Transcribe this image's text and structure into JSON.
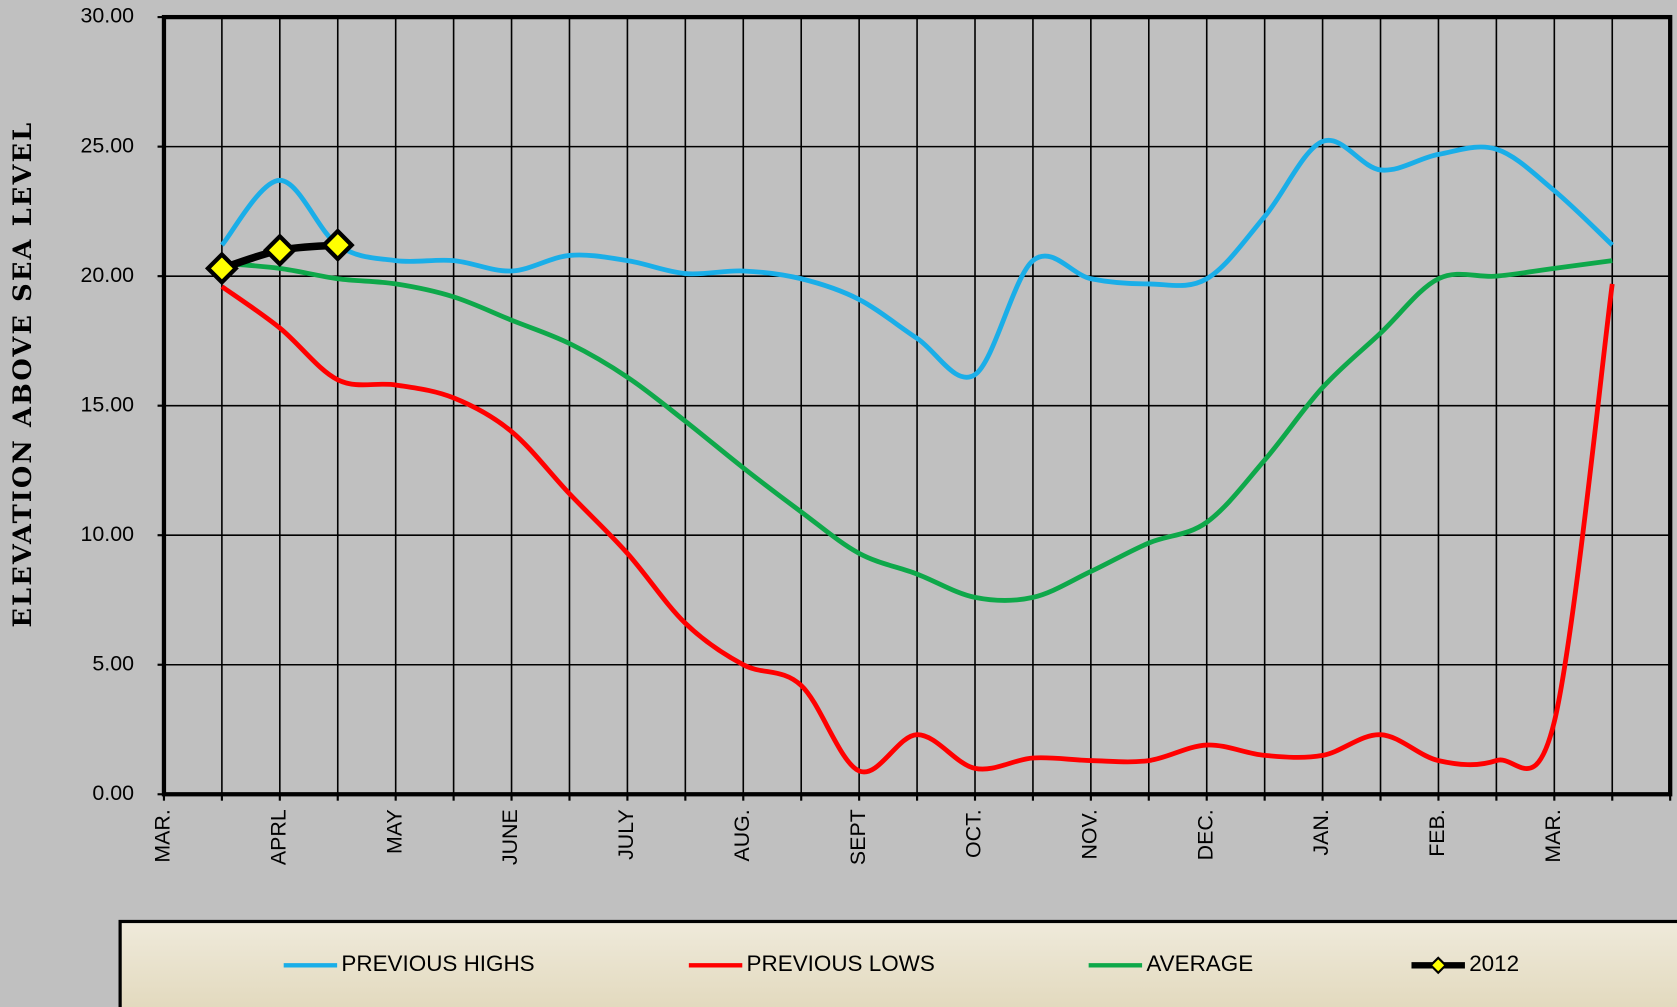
{
  "chart_data": {
    "type": "line",
    "ylabel": "ELEVATION ABOVE SEA LEVEL",
    "categories": [
      "MAR.",
      null,
      "APRL",
      null,
      "MAY",
      null,
      "JUNE",
      null,
      "JULY",
      null,
      "AUG.",
      null,
      "SEPT",
      null,
      "OCT.",
      null,
      "NOV.",
      null,
      "DEC.",
      null,
      "JAN.",
      null,
      "FEB.",
      null,
      "MAR.",
      null,
      null
    ],
    "ylim": [
      0,
      30
    ],
    "yticks": [
      {
        "value": 0,
        "label": "0.00"
      },
      {
        "value": 5,
        "label": "5.00"
      },
      {
        "value": 10,
        "label": "10.00"
      },
      {
        "value": 15,
        "label": "15.00"
      },
      {
        "value": 20,
        "label": "20.00"
      },
      {
        "value": 25,
        "label": "25.00"
      },
      {
        "value": 30,
        "label": "30.00"
      }
    ],
    "grid": true,
    "legend": "bottom",
    "series": [
      {
        "name": "PREVIOUS HIGHS",
        "color": "#1aaee8",
        "values": [
          null,
          21.2,
          23.7,
          21.2,
          20.6,
          20.6,
          20.2,
          20.8,
          20.6,
          20.1,
          20.2,
          19.9,
          19.1,
          17.6,
          16.2,
          20.6,
          19.9,
          19.7,
          19.9,
          22.3,
          25.2,
          24.1,
          24.7,
          24.9,
          23.3,
          21.2,
          null
        ]
      },
      {
        "name": "PREVIOUS LOWS",
        "color": "#ff0000",
        "values": [
          null,
          19.6,
          18.0,
          16.0,
          15.8,
          15.3,
          14.0,
          11.6,
          9.3,
          6.6,
          5.0,
          4.2,
          0.9,
          2.3,
          1.0,
          1.4,
          1.3,
          1.3,
          1.9,
          1.5,
          1.5,
          2.3,
          1.3,
          1.3,
          2.8,
          19.7,
          null
        ]
      },
      {
        "name": "AVERAGE",
        "color": "#0ea84a",
        "values": [
          null,
          20.5,
          20.3,
          19.9,
          19.7,
          19.2,
          18.3,
          17.4,
          16.1,
          14.4,
          12.6,
          10.9,
          9.3,
          8.5,
          7.6,
          7.6,
          8.6,
          9.7,
          10.5,
          12.9,
          15.7,
          17.8,
          19.9,
          20.0,
          20.3,
          20.6,
          null
        ]
      },
      {
        "name": "2012",
        "color": "#000000",
        "marker_color": "#ffff00",
        "values": [
          null,
          20.3,
          21.0,
          21.2,
          null,
          null,
          null,
          null,
          null,
          null,
          null,
          null,
          null,
          null,
          null,
          null,
          null,
          null,
          null,
          null,
          null,
          null,
          null,
          null,
          null,
          null,
          null
        ]
      }
    ]
  }
}
